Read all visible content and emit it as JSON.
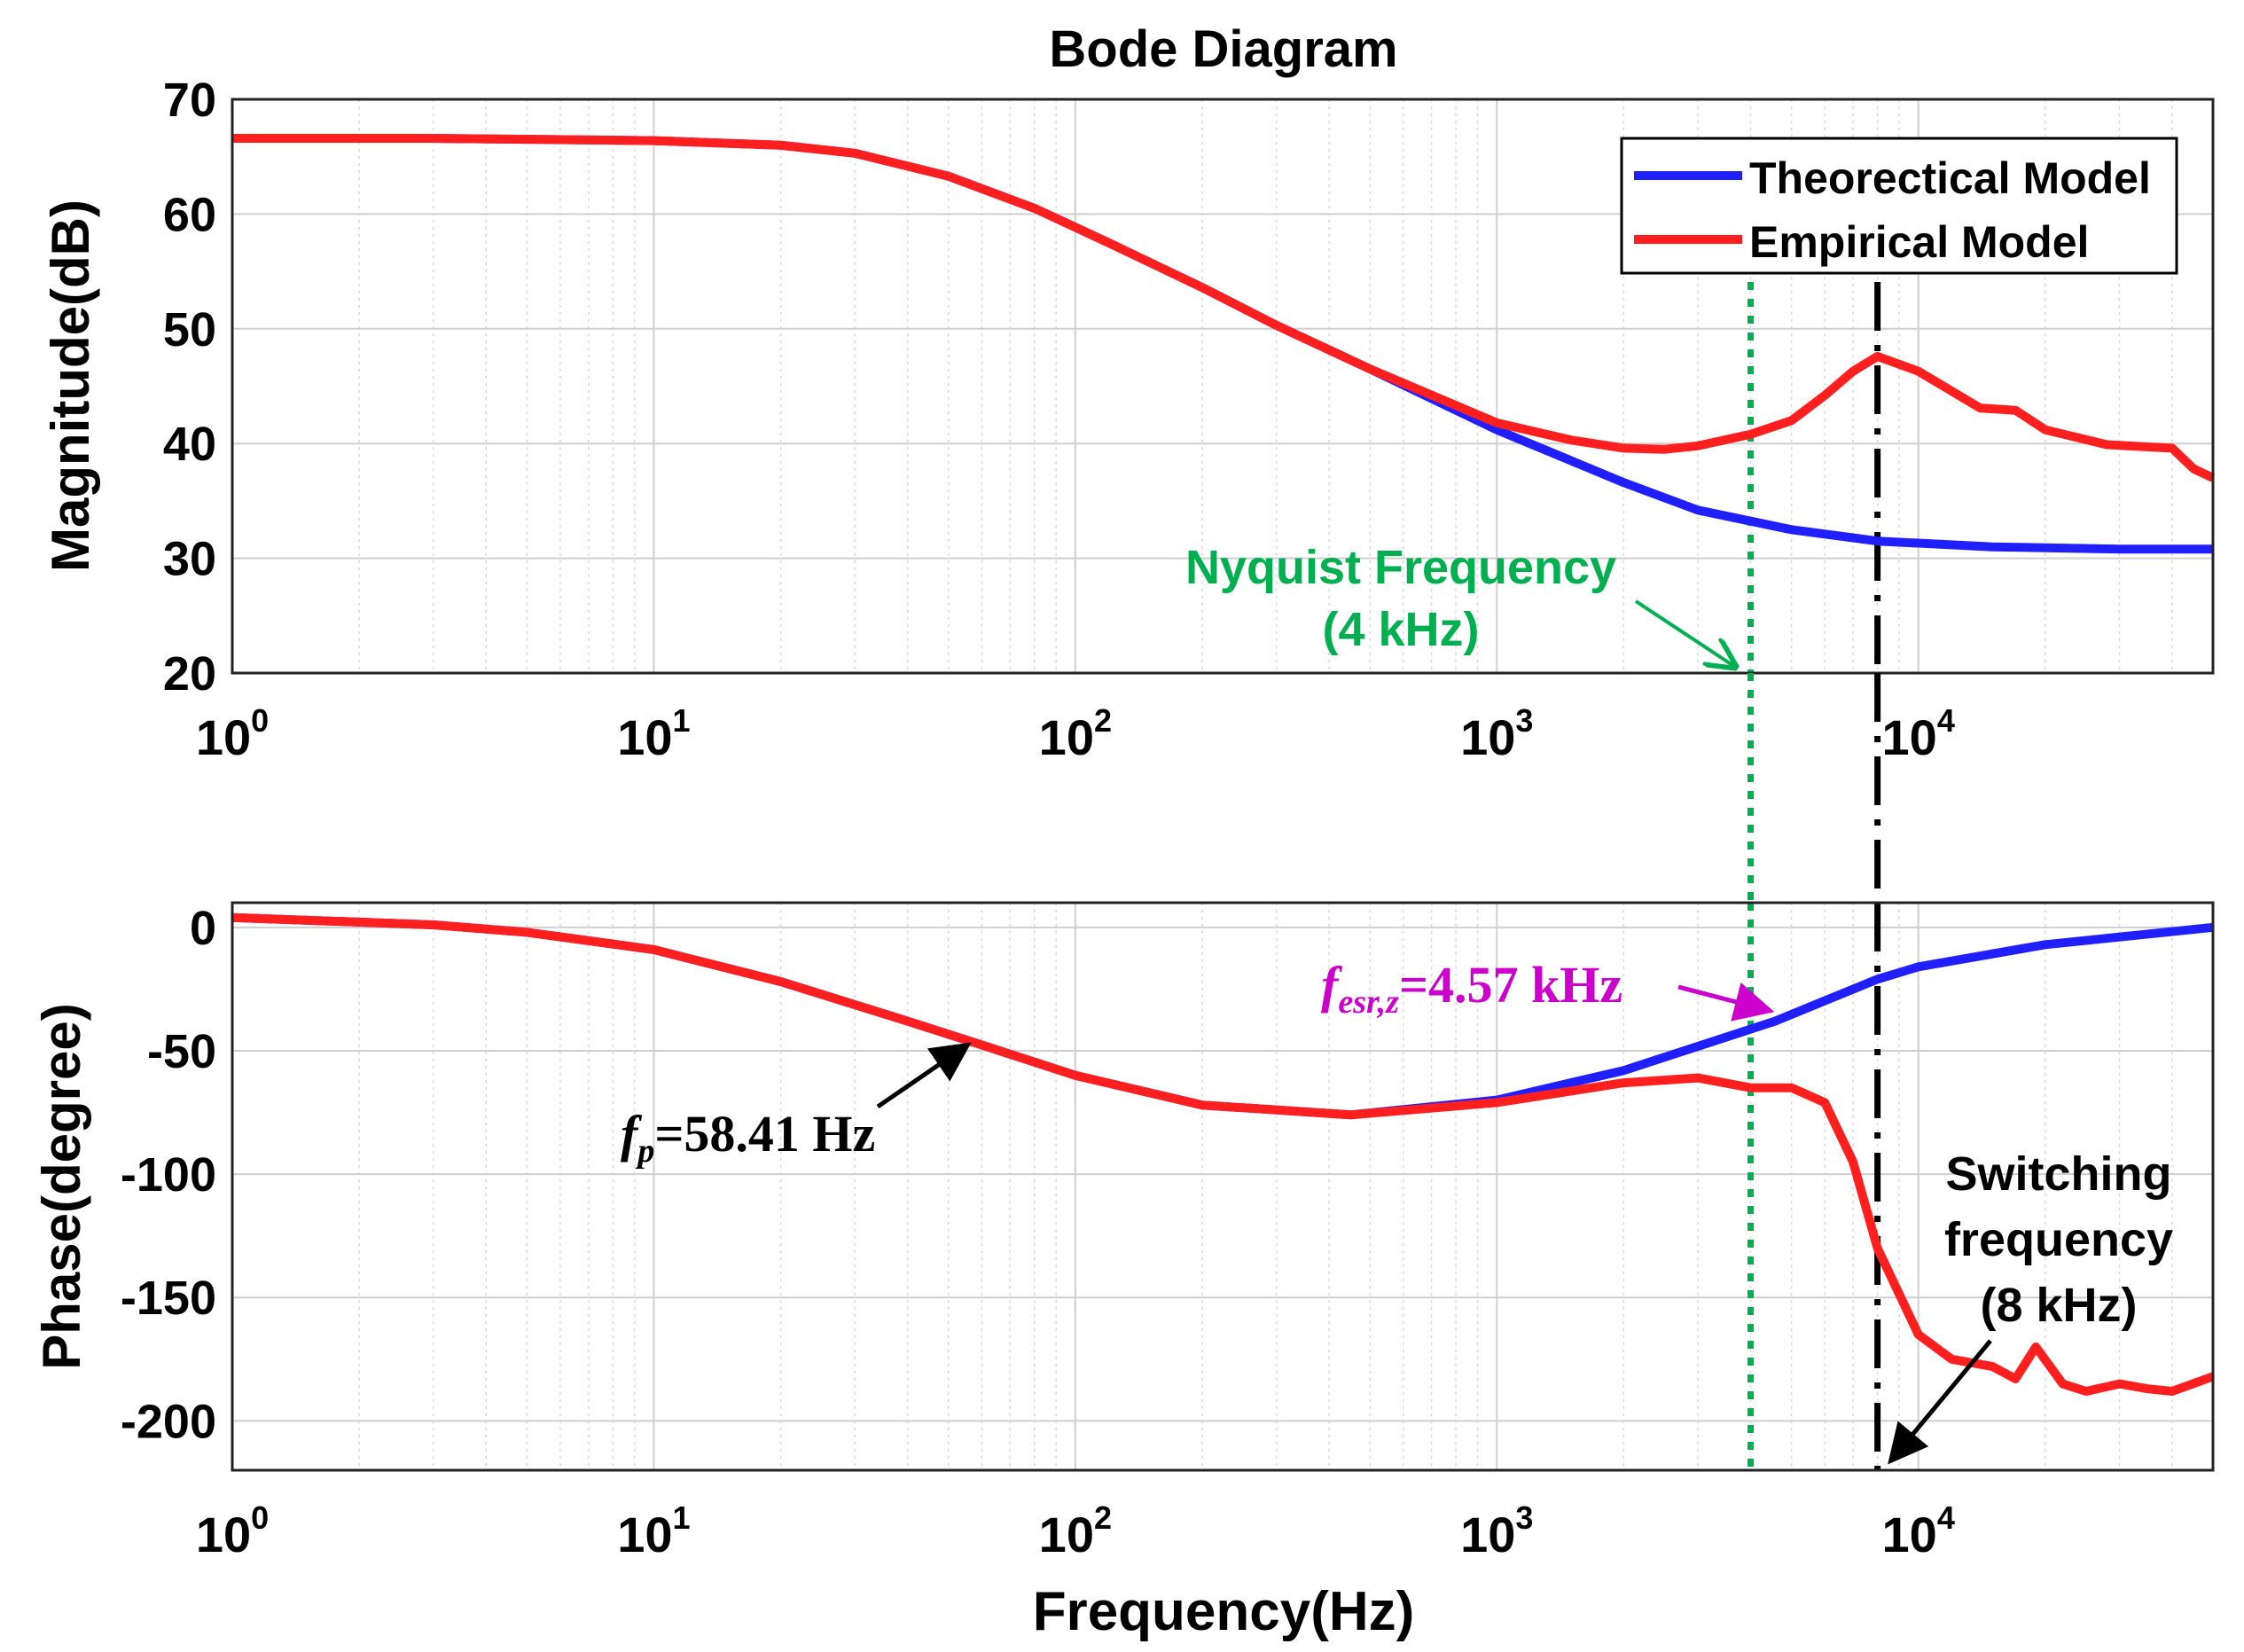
{
  "chart_data": [
    {
      "type": "line",
      "title": "Bode Diagram",
      "xlabel": "Frequency(Hz)",
      "ylabel": "Magnitude(dB)",
      "xscale": "log",
      "xlim": [
        1,
        50000
      ],
      "ylim": [
        20,
        70
      ],
      "yticks": [
        20,
        30,
        40,
        50,
        60,
        70
      ],
      "xticks": [
        {
          "value": 1,
          "base": "10",
          "exp": "0"
        },
        {
          "value": 10,
          "base": "10",
          "exp": "1"
        },
        {
          "value": 100,
          "base": "10",
          "exp": "2"
        },
        {
          "value": 1000,
          "base": "10",
          "exp": "3"
        },
        {
          "value": 10000,
          "base": "10",
          "exp": "4"
        }
      ],
      "grid": true,
      "legend_position": "top-right",
      "series": [
        {
          "name": "Theorectical Model",
          "color": "#1f1fff",
          "x": [
            1,
            3,
            10,
            20,
            30,
            50,
            80,
            120,
            200,
            300,
            500,
            1000,
            2000,
            3000,
            5000,
            8000,
            15000,
            30000,
            50000
          ],
          "values": [
            66.6,
            66.6,
            66.4,
            66,
            65.3,
            63.3,
            60.5,
            57.5,
            53.6,
            50.3,
            46.5,
            41.2,
            36.6,
            34.2,
            32.5,
            31.5,
            31,
            30.8,
            30.8
          ]
        },
        {
          "name": "Empirical Model",
          "color": "#ff1f1f",
          "x": [
            1,
            3,
            10,
            20,
            30,
            50,
            80,
            120,
            200,
            300,
            500,
            1000,
            1500,
            2000,
            2500,
            3000,
            4000,
            5000,
            6000,
            7000,
            8000,
            10000,
            14000,
            17000,
            20000,
            28000,
            40000,
            45000,
            50000
          ],
          "values": [
            66.6,
            66.6,
            66.4,
            66,
            65.3,
            63.3,
            60.5,
            57.5,
            53.6,
            50.3,
            46.5,
            41.8,
            40.3,
            39.6,
            39.5,
            39.8,
            40.8,
            42,
            44.2,
            46.3,
            47.6,
            46.3,
            43.1,
            42.9,
            41.2,
            39.9,
            39.6,
            37.8,
            37
          ]
        }
      ],
      "annotations": [
        {
          "line1": "Nyquist Frequency",
          "line2": "(4 kHz)",
          "x": 4000,
          "color": "#00b050"
        }
      ],
      "vlines": [
        {
          "x": 4000,
          "color": "#00b050",
          "style": "dotted"
        },
        {
          "x": 8000,
          "color": "#000000",
          "style": "dash-dot"
        }
      ]
    },
    {
      "type": "line",
      "xlabel": "Frequency(Hz)",
      "ylabel": "Phase(degree)",
      "xscale": "log",
      "xlim": [
        1,
        50000
      ],
      "ylim": [
        -220,
        10
      ],
      "yticks": [
        0,
        -50,
        -100,
        -150,
        -200
      ],
      "grid": true,
      "series": [
        {
          "name": "Theorectical Model",
          "color": "#1f1fff",
          "x": [
            1,
            3,
            5,
            10,
            20,
            40,
            58.41,
            100,
            200,
            450,
            1000,
            2000,
            4570,
            8000,
            10000,
            20000,
            50000
          ],
          "values": [
            4,
            1,
            -2,
            -9,
            -22,
            -38,
            -47,
            -60,
            -72,
            -76,
            -70,
            -58,
            -38,
            -21,
            -16,
            -7,
            0
          ]
        },
        {
          "name": "Empirical Model",
          "color": "#ff1f1f",
          "x": [
            1,
            3,
            5,
            10,
            20,
            40,
            58.41,
            100,
            200,
            450,
            1000,
            2000,
            3000,
            4000,
            5000,
            6000,
            7000,
            8000,
            10000,
            12000,
            15000,
            17000,
            19000,
            22000,
            25000,
            30000,
            35000,
            40000,
            50000
          ],
          "values": [
            4,
            1,
            -2,
            -9,
            -22,
            -38,
            -47,
            -60,
            -72,
            -76,
            -71,
            -63,
            -61,
            -65,
            -65,
            -71,
            -95,
            -130,
            -165,
            -175,
            -178,
            -183,
            -170,
            -185,
            -188,
            -185,
            -187,
            -188,
            -182
          ]
        }
      ],
      "annotations": [
        {
          "sub_base": "f",
          "sub": "p",
          "text": "=58.41 Hz",
          "x": 58.41,
          "color": "#000000"
        },
        {
          "sub_base": "f",
          "sub": "esr,z",
          "text": "=4.57 kHz",
          "x": 4570,
          "color": "#cc00cc"
        },
        {
          "line1": "Switching",
          "line2": "frequency",
          "line3": "(8 kHz)",
          "x": 8000,
          "color": "#000000"
        }
      ]
    }
  ]
}
